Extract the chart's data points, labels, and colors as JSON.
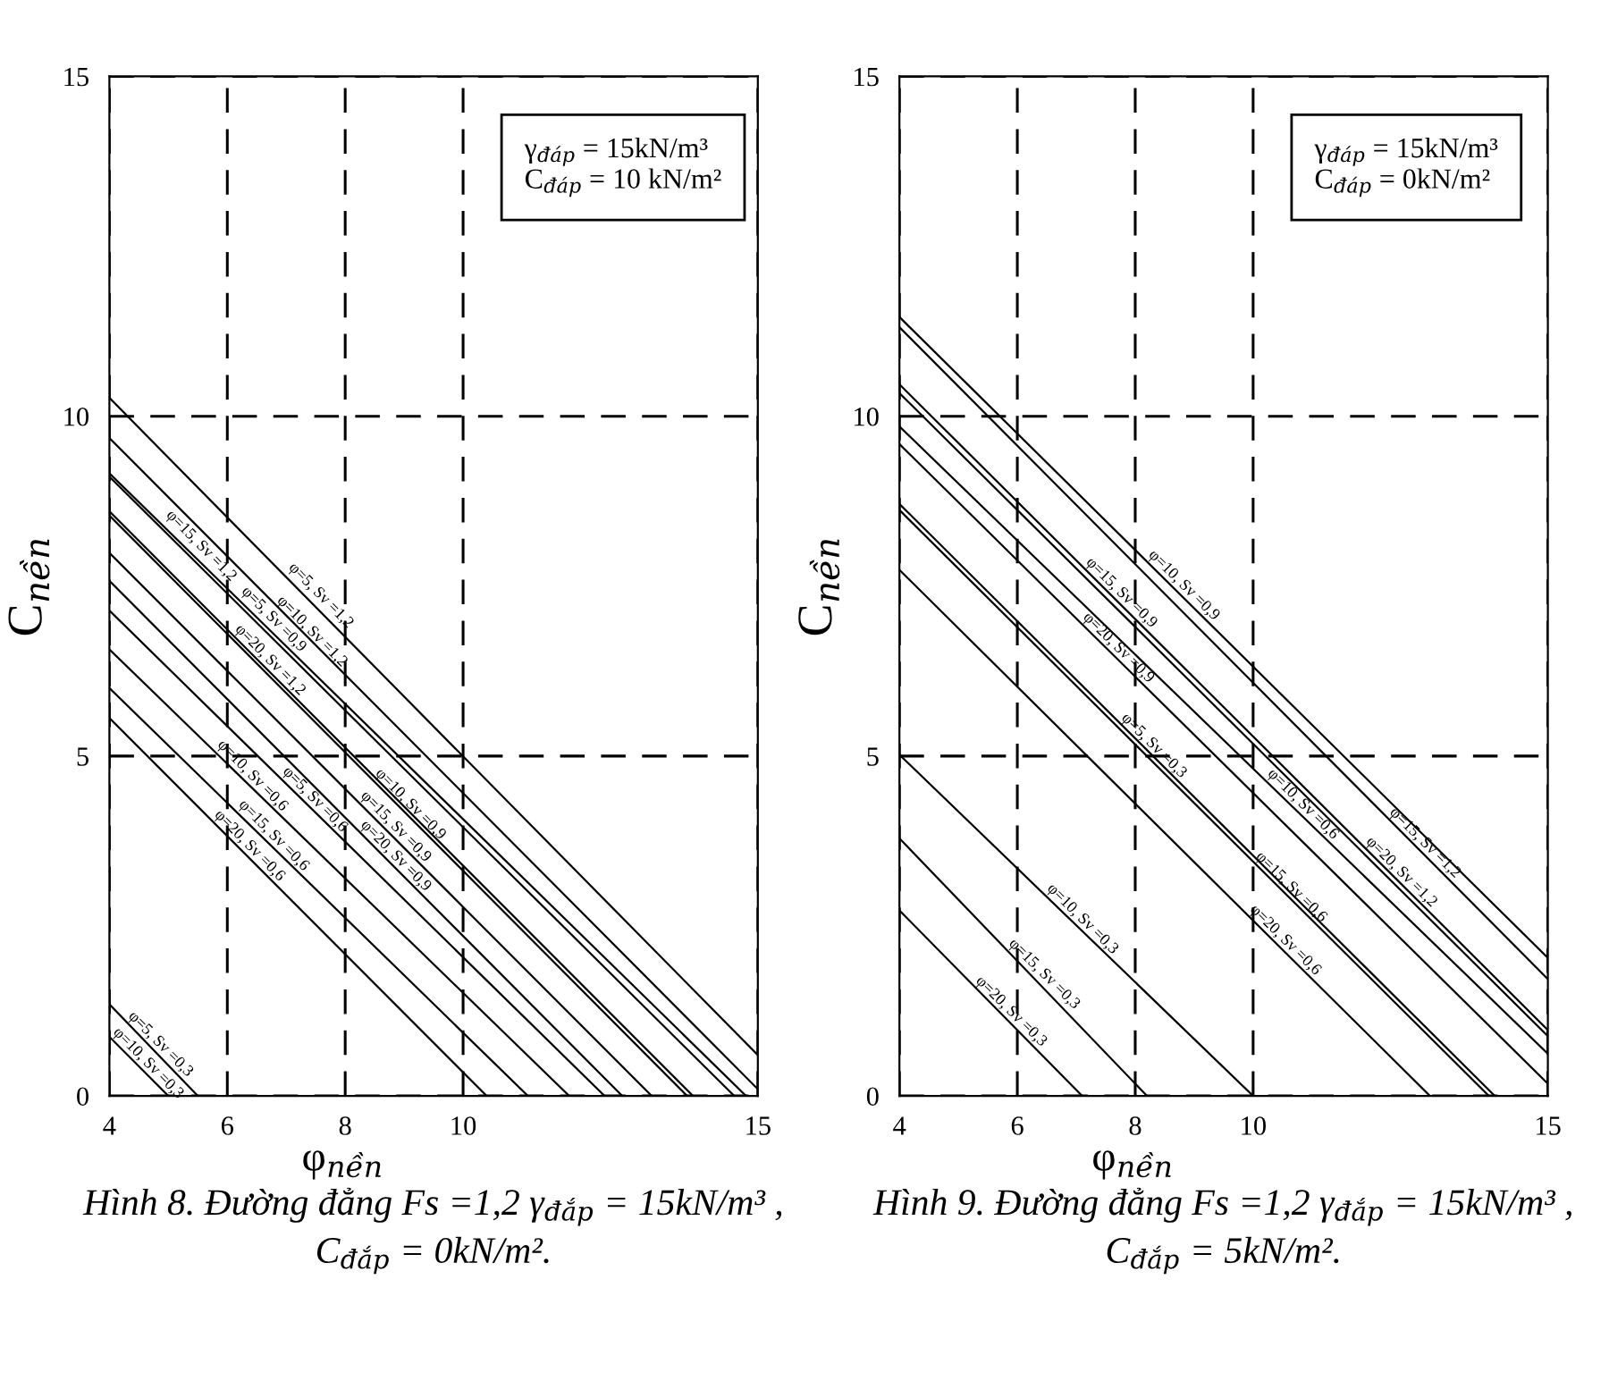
{
  "chart_data": [
    {
      "type": "line",
      "title": "Hình 8. Đường đẳng Fs =1,2 γ$_{đắp}$ = 15kN/m³ ,\nC$_{đắp}$ = 0kN/m².",
      "xlabel": "φ$_{nền}$",
      "ylabel": "C$_{nền}$",
      "xlim": [
        4,
        15
      ],
      "ylim": [
        0,
        15
      ],
      "xticks": [
        4,
        6,
        8,
        10,
        15
      ],
      "yticks": [
        0,
        5,
        10,
        15
      ],
      "grid": true,
      "marker": "none",
      "line_style": "solid",
      "series": [
        {
          "color": "#000000",
          "x": [
            4,
            15
          ],
          "values": [
            10.27,
            0.6
          ]
        },
        {
          "color": "#000000",
          "x": [
            4,
            15
          ],
          "values": [
            9.68,
            0.1
          ]
        },
        {
          "color": "#000000",
          "x": [
            4,
            14.8
          ],
          "values": [
            9.16,
            0
          ]
        },
        {
          "color": "#000000",
          "x": [
            4,
            14.6
          ],
          "values": [
            9.11,
            0
          ]
        },
        {
          "color": "#000000",
          "x": [
            4,
            13.9
          ],
          "values": [
            8.6,
            0
          ]
        },
        {
          "color": "#000000",
          "x": [
            4,
            13.8
          ],
          "values": [
            8.54,
            0
          ]
        },
        {
          "color": "#000000",
          "x": [
            4,
            13.2
          ],
          "values": [
            7.99,
            0
          ]
        },
        {
          "color": "#000000",
          "x": [
            4,
            12.7
          ],
          "values": [
            7.58,
            0
          ]
        },
        {
          "color": "#000000",
          "x": [
            4,
            12.4
          ],
          "values": [
            7.14,
            0
          ]
        },
        {
          "color": "#000000",
          "x": [
            4,
            11.8
          ],
          "values": [
            6.57,
            0
          ]
        },
        {
          "color": "#000000",
          "x": [
            4,
            11.1
          ],
          "values": [
            6.0,
            0
          ]
        },
        {
          "color": "#000000",
          "x": [
            4,
            10.4
          ],
          "values": [
            5.56,
            0
          ]
        },
        {
          "color": "#000000",
          "x": [
            4,
            5.5
          ],
          "values": [
            1.35,
            0
          ]
        },
        {
          "color": "#000000",
          "x": [
            4,
            5.0
          ],
          "values": [
            0.87,
            0
          ]
        }
      ],
      "annotations": [
        {
          "text": "φ=5, Sv =1,2",
          "x": 7.48,
          "y": 7.27
        },
        {
          "text": "φ=10, Sv =1,2",
          "x": 7.33,
          "y": 6.74
        },
        {
          "text": "φ=15, Sv =1,2",
          "x": 5.45,
          "y": 8.0
        },
        {
          "text": "φ=5, Sv =0,9",
          "x": 6.68,
          "y": 6.92
        },
        {
          "text": "φ=20, Sv =1,2",
          "x": 6.62,
          "y": 6.32
        },
        {
          "text": "φ=10, Sv =0,9",
          "x": 9.0,
          "y": 4.2
        },
        {
          "text": "φ=15, Sv =0,9",
          "x": 8.75,
          "y": 3.87
        },
        {
          "text": "φ=20, Sv =0,9",
          "x": 8.75,
          "y": 3.44
        },
        {
          "text": "φ=10, Sv =0,6",
          "x": 6.32,
          "y": 4.62
        },
        {
          "text": "φ=5, Sv =0,6",
          "x": 7.38,
          "y": 4.27
        },
        {
          "text": "φ=15, Sv =0,6",
          "x": 6.68,
          "y": 3.74
        },
        {
          "text": "φ=20, Sv =0,6",
          "x": 6.27,
          "y": 3.59
        },
        {
          "text": "φ=5, Sv =0,3",
          "x": 4.76,
          "y": 0.67
        },
        {
          "text": "φ=10, Sv =0,3",
          "x": 4.55,
          "y": 0.39
        },
        "γ$_{đáp}$ = 15kN/m³\nC$_{đáp}$ = 10 kN/m²"
      ]
    },
    {
      "type": "line",
      "title": "Hình 9. Đường đẳng Fs =1,2 γ$_{đắp}$ = 15kN/m³ ,\nC$_{đắp}$ = 5kN/m².",
      "xlabel": "φ$_{nền}$",
      "ylabel": "C$_{nền}$",
      "xlim": [
        4,
        15
      ],
      "ylim": [
        0,
        15
      ],
      "xticks": [
        4,
        6,
        8,
        10,
        15
      ],
      "yticks": [
        0,
        5,
        10,
        15
      ],
      "grid": true,
      "marker": "none",
      "line_style": "solid",
      "series": [
        {
          "color": "#000000",
          "x": [
            4,
            15
          ],
          "values": [
            11.46,
            2.03
          ]
        },
        {
          "color": "#000000",
          "x": [
            4,
            15
          ],
          "values": [
            11.31,
            1.72
          ]
        },
        {
          "color": "#000000",
          "x": [
            4,
            15
          ],
          "values": [
            10.47,
            0.97
          ]
        },
        {
          "color": "#000000",
          "x": [
            4,
            15
          ],
          "values": [
            10.34,
            0.88
          ]
        },
        {
          "color": "#000000",
          "x": [
            4,
            15
          ],
          "values": [
            9.85,
            0.62
          ]
        },
        {
          "color": "#000000",
          "x": [
            4,
            15
          ],
          "values": [
            9.59,
            0.18
          ]
        },
        {
          "color": "#000000",
          "x": [
            4,
            14.1
          ],
          "values": [
            8.71,
            0
          ]
        },
        {
          "color": "#000000",
          "x": [
            4,
            14.0
          ],
          "values": [
            8.62,
            0
          ]
        },
        {
          "color": "#000000",
          "x": [
            4,
            13.0
          ],
          "values": [
            7.74,
            0
          ]
        },
        {
          "color": "#000000",
          "x": [
            4,
            10.0
          ],
          "values": [
            5.02,
            0
          ]
        },
        {
          "color": "#000000",
          "x": [
            4,
            8.2
          ],
          "values": [
            3.79,
            0
          ]
        },
        {
          "color": "#000000",
          "x": [
            4,
            7.1
          ],
          "values": [
            2.73,
            0
          ]
        }
      ],
      "annotations": [
        {
          "text": "φ=10, Sv =0,9",
          "x": 8.72,
          "y": 7.42
        },
        {
          "text": "φ=15, Sv =0,9",
          "x": 7.66,
          "y": 7.31
        },
        {
          "text": "φ=20, Sv =0,9",
          "x": 7.61,
          "y": 6.5
        },
        {
          "text": "φ=5, Sv =0,3",
          "x": 8.21,
          "y": 5.06
        },
        {
          "text": "φ=10, Sv =0,6",
          "x": 10.74,
          "y": 4.2
        },
        {
          "text": "φ=15, Sv =1,2",
          "x": 12.81,
          "y": 3.63
        },
        {
          "text": "φ=20, Sv =1,2",
          "x": 12.41,
          "y": 3.2
        },
        {
          "text": "φ=15, Sv =0,6",
          "x": 10.54,
          "y": 2.98
        },
        {
          "text": "φ=20, Sv =0,6",
          "x": 10.44,
          "y": 2.2
        },
        {
          "text": "φ=10, Sv =0,3",
          "x": 7.0,
          "y": 2.51
        },
        {
          "text": "φ=15, Sv =0,3",
          "x": 6.35,
          "y": 1.7
        },
        {
          "text": "φ=20, Sv =0,3",
          "x": 5.79,
          "y": 1.15
        },
        "γ$_{đáp}$ = 15kN/m³\nC$_{đáp}$ = 0kN/m²"
      ]
    }
  ]
}
